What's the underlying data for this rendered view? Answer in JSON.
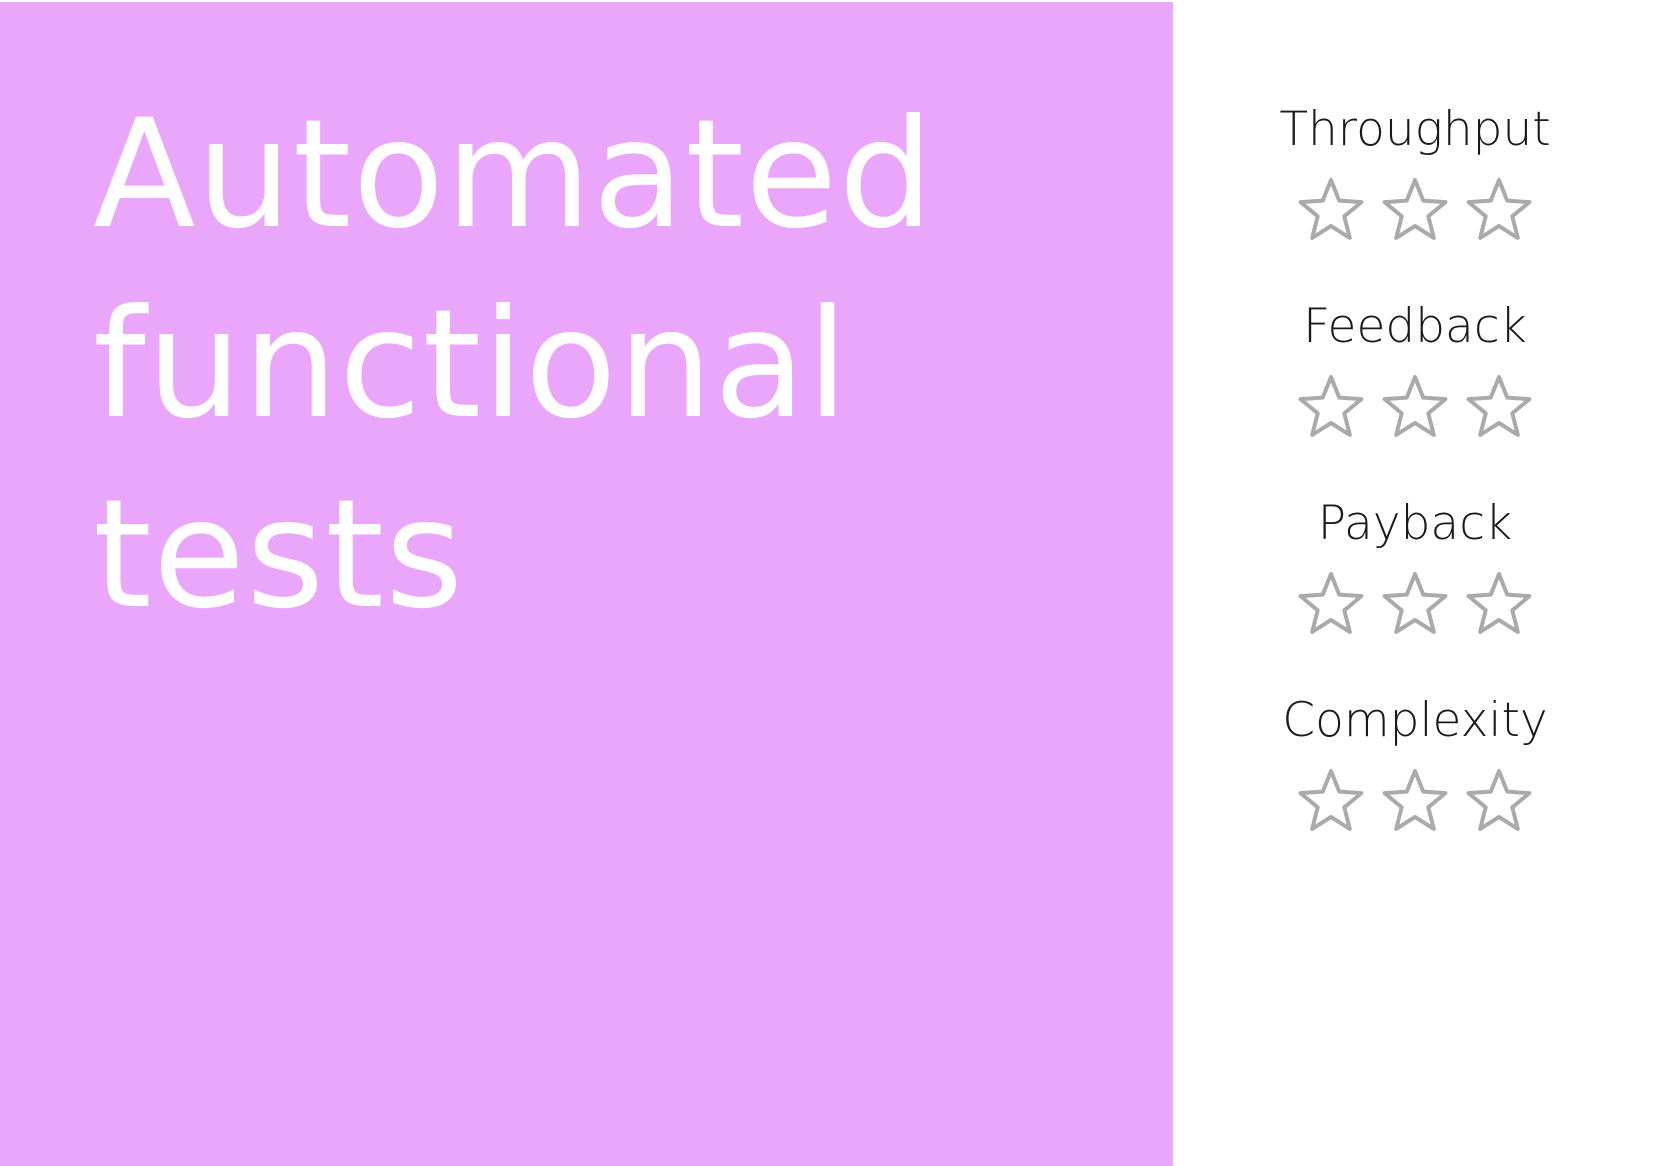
{
  "card": {
    "title_lines": [
      "Automated",
      "functional",
      "tests"
    ],
    "background_color": "#e9a6fb",
    "text_color": "#ffffff"
  },
  "metrics": [
    {
      "label": "Throughput",
      "rating": 0,
      "max": 3
    },
    {
      "label": "Feedback",
      "rating": 0,
      "max": 3
    },
    {
      "label": "Payback",
      "rating": 0,
      "max": 3
    },
    {
      "label": "Complexity",
      "rating": 0,
      "max": 3
    }
  ],
  "star_style": {
    "outline_color": "#aaaaaa",
    "empty_fill": "#ffffff",
    "filled_fill": "#aaaaaa",
    "icon": "star-outline-icon"
  }
}
